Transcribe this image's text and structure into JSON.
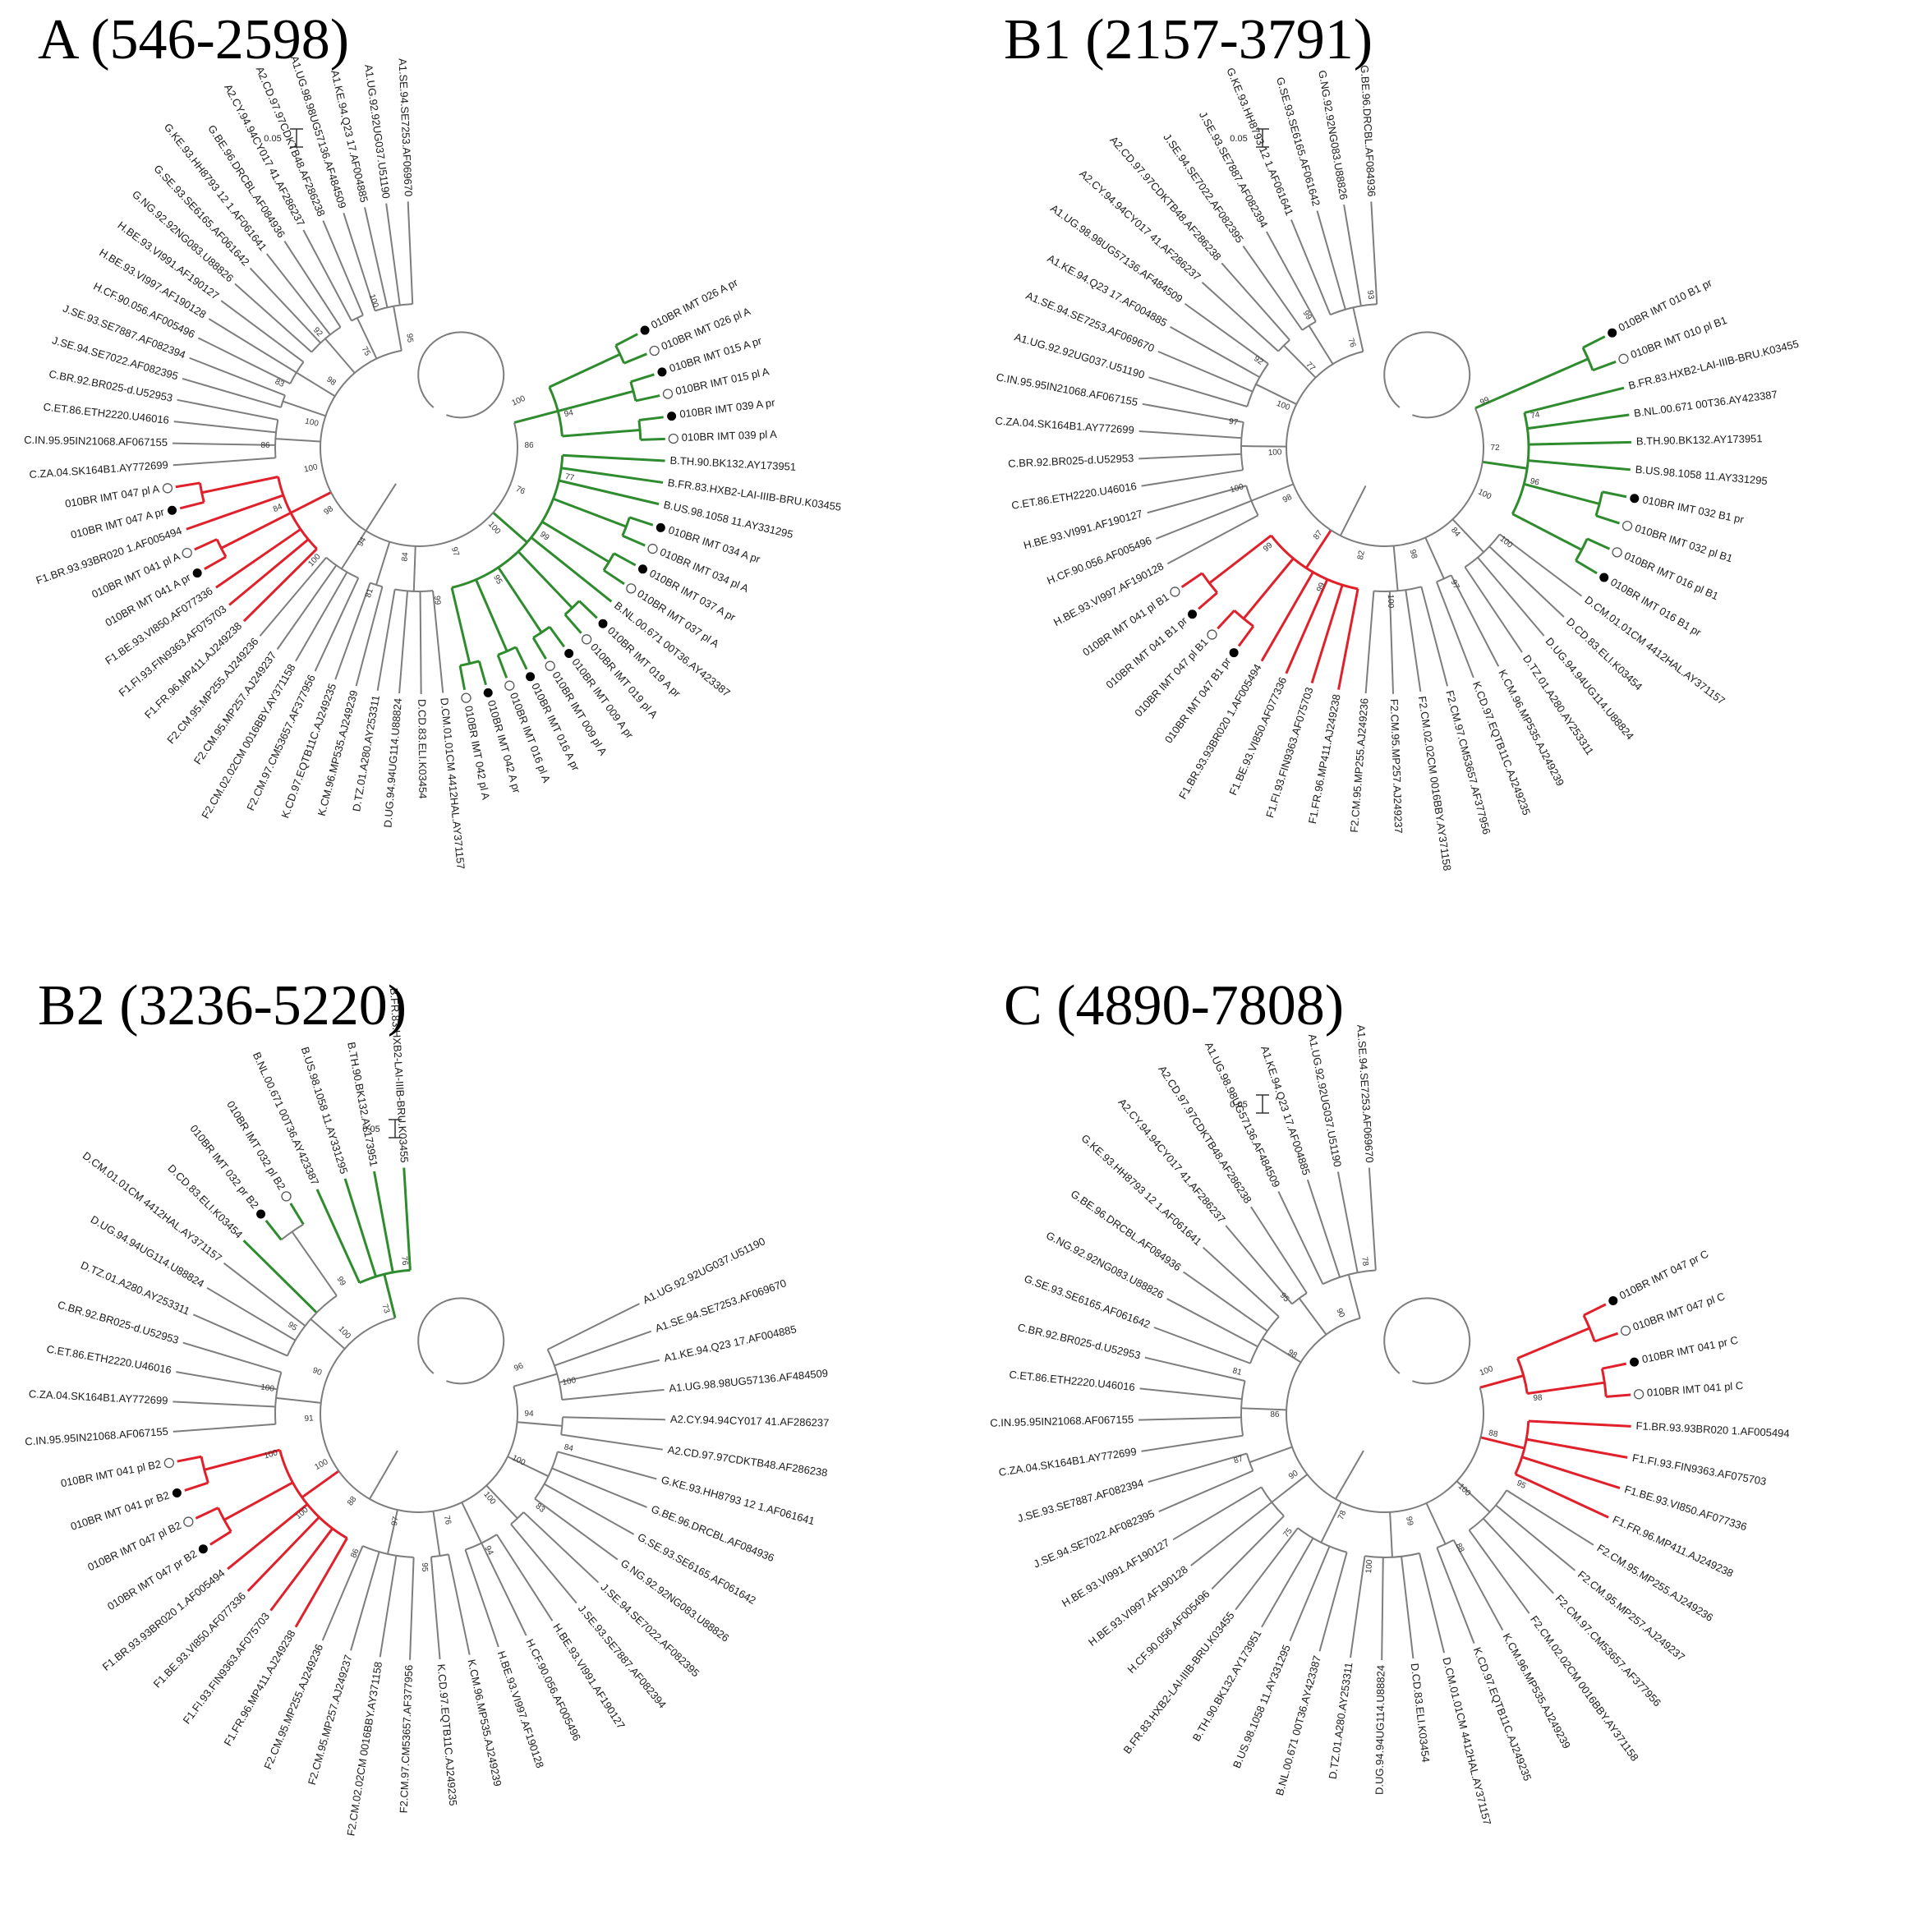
{
  "colors": {
    "branch": "#7d7d7d",
    "clade_B": "#2e8b2e",
    "clade_F": "#e0202a"
  },
  "scale_bar": "0.05",
  "panels": [
    {
      "id": "A",
      "title": "A (546-2598)",
      "scale_angle": 100,
      "leaves": [
        {
          "label": "010BR IMT 026 A pr",
          "marker": "pr",
          "clade": "B"
        },
        {
          "label": "010BR IMT 026 pl A",
          "marker": "pl",
          "clade": "B"
        },
        {
          "label": "010BR IMT 015 A pr",
          "marker": "pr",
          "clade": "B"
        },
        {
          "label": "010BR IMT 015 pl A",
          "marker": "pl",
          "clade": "B"
        },
        {
          "label": "010BR IMT 039 A pr",
          "marker": "pr",
          "clade": "B"
        },
        {
          "label": "010BR IMT 039 pl A",
          "marker": "pl",
          "clade": "B"
        },
        {
          "label": "B.TH.90.BK132.AY173951",
          "clade": "B"
        },
        {
          "label": "B.FR.83.HXB2-LAI-IIIB-BRU.K03455",
          "clade": "B"
        },
        {
          "label": "B.US.98.1058 11.AY331295",
          "clade": "B"
        },
        {
          "label": "010BR IMT 034 A pr",
          "marker": "pr",
          "clade": "B"
        },
        {
          "label": "010BR IMT 034 pl A",
          "marker": "pl",
          "clade": "B"
        },
        {
          "label": "010BR IMT 037 A pr",
          "marker": "pr",
          "clade": "B"
        },
        {
          "label": "010BR IMT 037 pl A",
          "marker": "pl",
          "clade": "B"
        },
        {
          "label": "B.NL.00.671 00T36.AY423387",
          "clade": "B"
        },
        {
          "label": "010BR IMT 019 A pr",
          "marker": "pr",
          "clade": "B"
        },
        {
          "label": "010BR IMT 019 pl A",
          "marker": "pl",
          "clade": "B"
        },
        {
          "label": "010BR IMT 009 A pr",
          "marker": "pr",
          "clade": "B"
        },
        {
          "label": "010BR IMT 009 pl A",
          "marker": "pl",
          "clade": "B"
        },
        {
          "label": "010BR IMT 016 A pr",
          "marker": "pr",
          "clade": "B"
        },
        {
          "label": "010BR IMT 016 pl A",
          "marker": "pl",
          "clade": "B"
        },
        {
          "label": "010BR IMT 042 A pr",
          "marker": "pr",
          "clade": "B"
        },
        {
          "label": "010BR IMT 042 pl A",
          "marker": "pl",
          "clade": "B"
        },
        {
          "label": "D.CM.01.01CM 4412HAL.AY371157"
        },
        {
          "label": "D.CD.83.ELI.K03454"
        },
        {
          "label": "D.UG.94.94UG114.U88824"
        },
        {
          "label": "D.TZ.01.A280.AY253311"
        },
        {
          "label": "K.CM.96.MP535.AJ249239"
        },
        {
          "label": "K.CD.97.EQTB11C.AJ249235"
        },
        {
          "label": "F2.CM.97.CM53657.AF377956"
        },
        {
          "label": "F2.CM.02.02CM 0016BBY.AY371158"
        },
        {
          "label": "F2.CM.95.MP257.AJ249237"
        },
        {
          "label": "F2.CM.95.MP255.AJ249236"
        },
        {
          "label": "F1.FR.96.MP411.AJ249238",
          "clade": "F"
        },
        {
          "label": "F1.FI.93.FIN9363.AF075703",
          "clade": "F"
        },
        {
          "label": "F1.BE.93.VI850.AF077336",
          "clade": "F"
        },
        {
          "label": "010BR IMT 041 A pr",
          "marker": "pr",
          "clade": "F"
        },
        {
          "label": "010BR IMT 041 pl A",
          "marker": "pl",
          "clade": "F"
        },
        {
          "label": "F1.BR.93.93BR020 1.AF005494",
          "clade": "F"
        },
        {
          "label": "010BR IMT 047 A pr",
          "marker": "pr",
          "clade": "F"
        },
        {
          "label": "010BR IMT 047 pl A",
          "marker": "pl",
          "clade": "F"
        },
        {
          "label": "C.ZA.04.SK164B1.AY772699"
        },
        {
          "label": "C.IN.95.95IN21068.AF067155"
        },
        {
          "label": "C.ET.86.ETH2220.U46016"
        },
        {
          "label": "C.BR.92.BR025-d.U52953"
        },
        {
          "label": "J.SE.94.SE7022.AF082395"
        },
        {
          "label": "J.SE.93.SE7887.AF082394"
        },
        {
          "label": "H.CF.90.056.AF005496"
        },
        {
          "label": "H.BE.93.VI997.AF190128"
        },
        {
          "label": "H.BE.93.VI991.AF190127"
        },
        {
          "label": "G.NG.92.92NG083.U88826"
        },
        {
          "label": "G.SE.93.SE6165.AF061642"
        },
        {
          "label": "G.KE.93.HH8793 12 1.AF061641"
        },
        {
          "label": "G.BE.96.DRCBL.AF084936"
        },
        {
          "label": "A2.CY.94.94CY017 41.AF286237"
        },
        {
          "label": "A2.CD.97.97CDKTB48.AF286238"
        },
        {
          "label": "A1.UG.98.98UG57136.AF484509"
        },
        {
          "label": "A1.KE.94.Q23 17.AF004885"
        },
        {
          "label": "A1.UG.92.92UG037.U51190"
        },
        {
          "label": "A1.SE.94.SE7253.AF069670"
        }
      ],
      "bootstrap": [
        "100",
        "94",
        "86",
        "77",
        "76",
        "99",
        "100",
        "95",
        "97",
        "99",
        "84",
        "81",
        "94",
        "100",
        "98",
        "84",
        "100",
        "86",
        "100",
        "83",
        "98",
        "92",
        "75",
        "100",
        "95"
      ]
    },
    {
      "id": "B1",
      "title": "B1 (2157-3791)",
      "scale_angle": 100,
      "leaves": [
        {
          "label": "010BR IMT 010 B1 pr",
          "marker": "pr",
          "clade": "B"
        },
        {
          "label": "010BR IMT 010 pl B1",
          "marker": "pl",
          "clade": "B"
        },
        {
          "label": "B.FR.83.HXB2-LAI-IIIB-BRU.K03455",
          "clade": "B"
        },
        {
          "label": "B.NL.00.671 00T36.AY423387",
          "clade": "B"
        },
        {
          "label": "B.TH.90.BK132.AY173951",
          "clade": "B"
        },
        {
          "label": "B.US.98.1058 11.AY331295",
          "clade": "B"
        },
        {
          "label": "010BR IMT 032 B1 pr",
          "marker": "pr",
          "clade": "B"
        },
        {
          "label": "010BR IMT 032 pl B1",
          "marker": "pl",
          "clade": "B"
        },
        {
          "label": "010BR IMT 016 pl B1",
          "marker": "pl",
          "clade": "B"
        },
        {
          "label": "010BR IMT 016 B1 pr",
          "marker": "pr",
          "clade": "B"
        },
        {
          "label": "D.CM.01.01CM 4412HAL.AY371157"
        },
        {
          "label": "D.CD.83.ELI.K03454"
        },
        {
          "label": "D.UG.94.94UG114.U88824"
        },
        {
          "label": "D.TZ.01.A280.AY253311"
        },
        {
          "label": "K.CM.96.MP535.AJ249239"
        },
        {
          "label": "K.CD.97.EQTB11C.AJ249235"
        },
        {
          "label": "F2.CM.97.CM53657.AF377956"
        },
        {
          "label": "F2.CM.02.02CM 0016BBY.AY371158"
        },
        {
          "label": "F2.CM.95.MP257.AJ249237"
        },
        {
          "label": "F2.CM.95.MP255.AJ249236"
        },
        {
          "label": "F1.FR.96.MP411.AJ249238",
          "clade": "F"
        },
        {
          "label": "F1.FI.93.FIN9363.AF075703",
          "clade": "F"
        },
        {
          "label": "F1.BE.93.VI850.AF077336",
          "clade": "F"
        },
        {
          "label": "F1.BR.93.93BR020 1.AF005494",
          "clade": "F"
        },
        {
          "label": "010BR IMT 047 B1 pr",
          "marker": "pr",
          "clade": "F"
        },
        {
          "label": "010BR IMT 047 pl B1",
          "marker": "pl",
          "clade": "F"
        },
        {
          "label": "010BR IMT 041 B1 pr",
          "marker": "pr",
          "clade": "F"
        },
        {
          "label": "010BR IMT 041 pl B1",
          "marker": "pl",
          "clade": "F"
        },
        {
          "label": "H.BE.93.VI997.AF190128"
        },
        {
          "label": "H.CF.90.056.AF005496"
        },
        {
          "label": "H.BE.93.VI991.AF190127"
        },
        {
          "label": "C.ET.86.ETH2220.U46016"
        },
        {
          "label": "C.BR.92.BR025-d.U52953"
        },
        {
          "label": "C.ZA.04.SK164B1.AY772699"
        },
        {
          "label": "C.IN.95.95IN21068.AF067155"
        },
        {
          "label": "A1.UG.92.92UG037.U51190"
        },
        {
          "label": "A1.SE.94.SE7253.AF069670"
        },
        {
          "label": "A1.KE.94.Q23 17.AF004885"
        },
        {
          "label": "A1.UG.98.98UG57136.AF484509"
        },
        {
          "label": "A2.CY.94.94CY017 41.AF286237"
        },
        {
          "label": "A2.CD.97.97CDKTB48.AF286238"
        },
        {
          "label": "J.SE.94.SE7022.AF082395"
        },
        {
          "label": "J.SE.93.SE7887.AF082394"
        },
        {
          "label": "G.KE.93.HH8793 12 1.AF061641"
        },
        {
          "label": "G.SE.93.SE6165.AF061642"
        },
        {
          "label": "G.NG.92.92NG083.U88826"
        },
        {
          "label": "G.BE.96.DRCBL.AF084936"
        }
      ],
      "bootstrap": [
        "99",
        "74",
        "72",
        "96",
        "100",
        "100",
        "84",
        "97",
        "98",
        "100",
        "82",
        "99",
        "87",
        "99",
        "98",
        "100",
        "100",
        "97",
        "100",
        "92",
        "77",
        "99",
        "76",
        "93"
      ]
    },
    {
      "id": "B2",
      "title": "B2 (3236-5220)",
      "scale_angle": 2,
      "leaves": [
        {
          "label": "A1.UG.92.92UG037.U51190"
        },
        {
          "label": "A1.SE.94.SE7253.AF069670"
        },
        {
          "label": "A1.KE.94.Q23 17.AF004885"
        },
        {
          "label": "A1.UG.98.98UG57136.AF484509"
        },
        {
          "label": "A2.CY.94.94CY017 41.AF286237"
        },
        {
          "label": "A2.CD.97.97CDKTB48.AF286238"
        },
        {
          "label": "G.KE.93.HH8793 12 1.AF061641"
        },
        {
          "label": "G.BE.96.DRCBL.AF084936"
        },
        {
          "label": "G.SE.93.SE6165.AF061642"
        },
        {
          "label": "G.NG.92.92NG083.U88826"
        },
        {
          "label": "J.SE.94.SE7022.AF082395"
        },
        {
          "label": "J.SE.93.SE7887.AF082394"
        },
        {
          "label": "H.BE.93.VI991.AF190127"
        },
        {
          "label": "H.CF.90.056.AF005496"
        },
        {
          "label": "H.BE.93.VI997.AF190128"
        },
        {
          "label": "K.CM.96.MP535.AJ249239"
        },
        {
          "label": "K.CD.97.EQTB11C.AJ249235"
        },
        {
          "label": "F2.CM.97.CM53657.AF377956"
        },
        {
          "label": "F2.CM.02.02CM 0016BBY.AY371158"
        },
        {
          "label": "F2.CM.95.MP257.AJ249237"
        },
        {
          "label": "F2.CM.95.MP255.AJ249236"
        },
        {
          "label": "F1.FR.96.MP411.AJ249238",
          "clade": "F"
        },
        {
          "label": "F1.FI.93.FIN9363.AF075703",
          "clade": "F"
        },
        {
          "label": "F1.BE.93.VI850.AF077336",
          "clade": "F"
        },
        {
          "label": "F1.BR.93.93BR020 1.AF005494",
          "clade": "F"
        },
        {
          "label": "010BR IMT 047 pr B2",
          "marker": "pr",
          "clade": "F"
        },
        {
          "label": "010BR IMT 047 pl B2",
          "marker": "pl",
          "clade": "F"
        },
        {
          "label": "010BR IMT 041 pr B2",
          "marker": "pr",
          "clade": "F"
        },
        {
          "label": "010BR IMT 041 pl B2",
          "marker": "pl",
          "clade": "F"
        },
        {
          "label": "C.IN.95.95IN21068.AF067155"
        },
        {
          "label": "C.ZA.04.SK164B1.AY772699"
        },
        {
          "label": "C.ET.86.ETH2220.U46016"
        },
        {
          "label": "C.BR.92.BR025-d.U52953"
        },
        {
          "label": "D.TZ.01.A280.AY253311"
        },
        {
          "label": "D.UG.94.94UG114.U88824"
        },
        {
          "label": "D.CM.01.01CM 4412HAL.AY371157"
        },
        {
          "label": "D.CD.83.ELI.K03454",
          "clade": "B"
        },
        {
          "label": "010BR IMT 032 pr B2",
          "marker": "pr",
          "clade": "B"
        },
        {
          "label": "010BR IMT 032 pl B2",
          "marker": "pl",
          "clade": "B"
        },
        {
          "label": "B.NL.00.671 00T36.AY423387",
          "clade": "B"
        },
        {
          "label": "B.US.98.1058 11.AY331295",
          "clade": "B"
        },
        {
          "label": "B.TH.90.BK132.AY173951",
          "clade": "B"
        },
        {
          "label": "B.FR.83.HXB2-LAI-IIIB-BRU.K03455",
          "clade": "B"
        }
      ],
      "bootstrap": [
        "96",
        "100",
        "94",
        "84",
        "100",
        "83",
        "100",
        "94",
        "76",
        "95",
        "97",
        "86",
        "88",
        "100",
        "100",
        "100",
        "91",
        "100",
        "90",
        "95",
        "100",
        "99",
        "73",
        "76"
      ]
    },
    {
      "id": "C",
      "title": "C (4890-7808)",
      "scale_angle": 100,
      "leaves": [
        {
          "label": "010BR IMT 047 pr C",
          "marker": "pr",
          "clade": "F"
        },
        {
          "label": "010BR IMT 047 pl C",
          "marker": "pl",
          "clade": "F"
        },
        {
          "label": "010BR IMT 041 pr C",
          "marker": "pr",
          "clade": "F"
        },
        {
          "label": "010BR IMT 041 pl C",
          "marker": "pl",
          "clade": "F"
        },
        {
          "label": "F1.BR.93.93BR020 1.AF005494",
          "clade": "F"
        },
        {
          "label": "F1.FI.93.FIN9363.AF075703",
          "clade": "F"
        },
        {
          "label": "F1.BE.93.VI850.AF077336",
          "clade": "F"
        },
        {
          "label": "F1.FR.96.MP411.AJ249238",
          "clade": "F"
        },
        {
          "label": "F2.CM.95.MP255.AJ249236"
        },
        {
          "label": "F2.CM.95.MP257.AJ249237"
        },
        {
          "label": "F2.CM.97.CM53657.AF377956"
        },
        {
          "label": "F2.CM.02.02CM 0016BBY.AY371158"
        },
        {
          "label": "K.CM.96.MP535.AJ249239"
        },
        {
          "label": "K.CD.97.EQTB11C.AJ249235"
        },
        {
          "label": "D.CM.01.01CM 4412HAL.AY371157"
        },
        {
          "label": "D.CD.83.ELI.K03454"
        },
        {
          "label": "D.UG.94.94UG114.U88824"
        },
        {
          "label": "D.TZ.01.A280.AY253311"
        },
        {
          "label": "B.NL.00.671 00T36.AY423387"
        },
        {
          "label": "B.US.98.1058 11.AY331295"
        },
        {
          "label": "B.TH.90.BK132.AY173951"
        },
        {
          "label": "B.FR.83.HXB2-LAI-IIIB-BRU.K03455"
        },
        {
          "label": "H.CF.90.056.AF005496"
        },
        {
          "label": "H.BE.93.VI997.AF190128"
        },
        {
          "label": "H.BE.93.VI991.AF190127"
        },
        {
          "label": "J.SE.94.SE7022.AF082395"
        },
        {
          "label": "J.SE.93.SE7887.AF082394"
        },
        {
          "label": "C.ZA.04.SK164B1.AY772699"
        },
        {
          "label": "C.IN.95.95IN21068.AF067155"
        },
        {
          "label": "C.ET.86.ETH2220.U46016"
        },
        {
          "label": "C.BR.92.BR025-d.U52953"
        },
        {
          "label": "G.SE.93.SE6165.AF061642"
        },
        {
          "label": "G.NG.92.92NG083.U88826"
        },
        {
          "label": "G.BE.96.DRCBL.AF084936"
        },
        {
          "label": "G.KE.93.HH8793 12 1.AF061641"
        },
        {
          "label": "A2.CY.94.94CY017 41.AF286237"
        },
        {
          "label": "A2.CD.97.97CDKTB48.AF286238"
        },
        {
          "label": "A1.UG.98.98UG57136.AF484509"
        },
        {
          "label": "A1.KE.94.Q23 17.AF004885"
        },
        {
          "label": "A1.UG.92.92UG037.U51190"
        },
        {
          "label": "A1.SE.94.SE7253.AF069670"
        }
      ],
      "bootstrap": [
        "100",
        "98",
        "88",
        "95",
        "100",
        "88",
        "99",
        "100",
        "78",
        "75",
        "90",
        "87",
        "86",
        "81",
        "98",
        "95",
        "90",
        "78"
      ]
    }
  ]
}
